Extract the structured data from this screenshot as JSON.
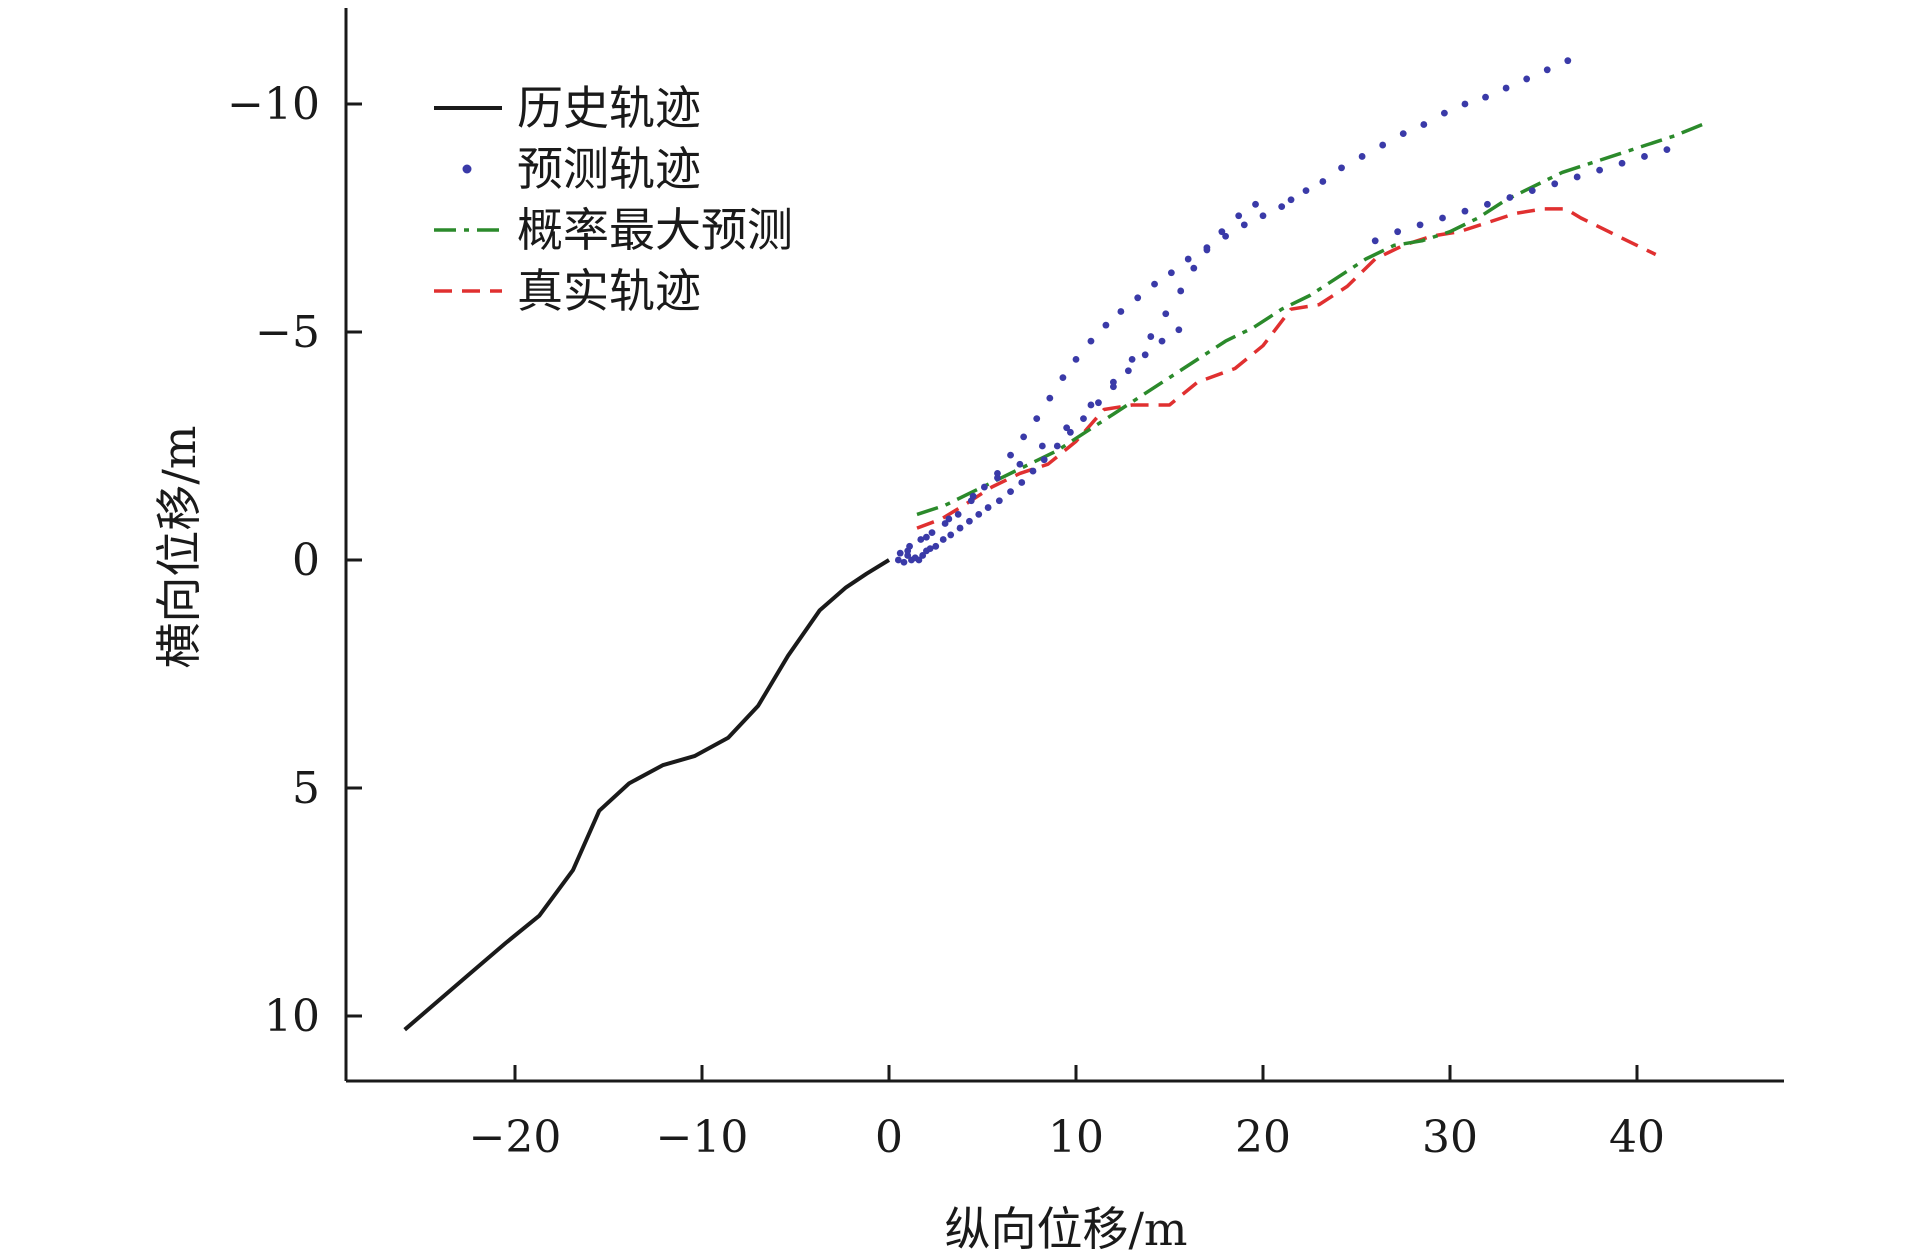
{
  "chart_data": {
    "type": "line",
    "xlabel": "纵向位移/m",
    "ylabel": "横向位移/m",
    "xlim": [
      -29,
      48
    ],
    "ylim": [
      11.5,
      -12
    ],
    "y_inverted": true,
    "x_ticks": [
      -20,
      -10,
      0,
      10,
      20,
      30,
      40
    ],
    "x_tick_labels": [
      "−20",
      "−10",
      "0",
      "10",
      "20",
      "30",
      "40"
    ],
    "y_ticks": [
      -10,
      -5,
      0,
      5,
      10
    ],
    "y_tick_labels": [
      "−10",
      "−5",
      "0",
      "5",
      "10"
    ],
    "grid": false,
    "legend_position": "top-left",
    "series": [
      {
        "name": "历史轨迹",
        "style": "solid",
        "color": "#1a1a1a",
        "points": [
          [
            -25.9,
            10.3
          ],
          [
            -22.5,
            9.1
          ],
          [
            -20.5,
            8.4
          ],
          [
            -18.7,
            7.8
          ],
          [
            -16.9,
            6.8
          ],
          [
            -15.5,
            5.5
          ],
          [
            -13.9,
            4.9
          ],
          [
            -12.1,
            4.5
          ],
          [
            -10.4,
            4.3
          ],
          [
            -8.6,
            3.9
          ],
          [
            -7.0,
            3.2
          ],
          [
            -5.4,
            2.1
          ],
          [
            -3.7,
            1.1
          ],
          [
            -2.3,
            0.6
          ],
          [
            -1.2,
            0.3
          ],
          [
            0,
            0
          ]
        ]
      },
      {
        "name": "预测轨迹",
        "style": "dotted",
        "color": "#3a3aa8",
        "points": [
          [
            0.5,
            0.0
          ],
          [
            0.8,
            0.05
          ],
          [
            1.0,
            -0.1
          ],
          [
            1.2,
            0.0
          ],
          [
            1.4,
            -0.05
          ],
          [
            1.6,
            0.0
          ],
          [
            1.8,
            -0.1
          ],
          [
            2.0,
            -0.2
          ],
          [
            2.2,
            -0.25
          ],
          [
            2.5,
            -0.3
          ],
          [
            2.9,
            -0.45
          ],
          [
            3.3,
            -0.55
          ],
          [
            3.8,
            -0.7
          ],
          [
            4.3,
            -0.85
          ],
          [
            4.8,
            -1.0
          ],
          [
            5.3,
            -1.15
          ],
          [
            5.9,
            -1.3
          ],
          [
            6.5,
            -1.5
          ],
          [
            7.1,
            -1.7
          ],
          [
            7.7,
            -1.95
          ],
          [
            8.3,
            -2.2
          ],
          [
            9.0,
            -2.5
          ],
          [
            9.7,
            -2.8
          ],
          [
            10.4,
            -3.1
          ],
          [
            11.2,
            -3.45
          ],
          [
            12.0,
            -3.8
          ],
          [
            12.8,
            -4.15
          ],
          [
            13.7,
            -4.5
          ],
          [
            14.6,
            -4.8
          ],
          [
            15.5,
            -5.05
          ],
          [
            0.6,
            -0.15
          ],
          [
            1.1,
            -0.3
          ],
          [
            1.7,
            -0.45
          ],
          [
            2.3,
            -0.6
          ],
          [
            3.0,
            -0.8
          ],
          [
            3.7,
            -1.0
          ],
          [
            4.4,
            -1.3
          ],
          [
            5.1,
            -1.6
          ],
          [
            5.8,
            -1.9
          ],
          [
            6.5,
            -2.3
          ],
          [
            7.2,
            -2.7
          ],
          [
            7.9,
            -3.1
          ],
          [
            8.6,
            -3.55
          ],
          [
            9.3,
            -4.0
          ],
          [
            10.0,
            -4.4
          ],
          [
            10.8,
            -4.8
          ],
          [
            11.6,
            -5.15
          ],
          [
            12.4,
            -5.45
          ],
          [
            13.3,
            -5.75
          ],
          [
            14.2,
            -6.05
          ],
          [
            15.1,
            -6.3
          ],
          [
            16.0,
            -6.6
          ],
          [
            17.0,
            -6.85
          ],
          [
            18.0,
            -7.1
          ],
          [
            19.0,
            -7.35
          ],
          [
            20.0,
            -7.55
          ],
          [
            21.0,
            -7.75
          ],
          [
            1.0,
            -0.2
          ],
          [
            2.0,
            -0.5
          ],
          [
            3.2,
            -0.9
          ],
          [
            4.5,
            -1.4
          ],
          [
            5.8,
            -1.8
          ],
          [
            7.0,
            -2.1
          ],
          [
            8.2,
            -2.5
          ],
          [
            9.5,
            -2.9
          ],
          [
            10.8,
            -3.4
          ],
          [
            12.0,
            -3.9
          ],
          [
            13.0,
            -4.4
          ],
          [
            14.0,
            -4.9
          ],
          [
            14.8,
            -5.4
          ],
          [
            15.6,
            -5.9
          ],
          [
            16.3,
            -6.4
          ],
          [
            17.0,
            -6.8
          ],
          [
            17.8,
            -7.2
          ],
          [
            18.7,
            -7.55
          ],
          [
            19.6,
            -7.8
          ],
          [
            21.5,
            -7.9
          ],
          [
            22.3,
            -8.1
          ],
          [
            23.2,
            -8.3
          ],
          [
            24.2,
            -8.6
          ],
          [
            25.3,
            -8.85
          ],
          [
            26.4,
            -9.1
          ],
          [
            27.5,
            -9.35
          ],
          [
            28.6,
            -9.55
          ],
          [
            29.7,
            -9.8
          ],
          [
            30.8,
            -10.0
          ],
          [
            31.9,
            -10.15
          ],
          [
            33.0,
            -10.35
          ],
          [
            34.1,
            -10.55
          ],
          [
            35.2,
            -10.75
          ],
          [
            36.3,
            -10.95
          ],
          [
            26.0,
            -7.0
          ],
          [
            27.2,
            -7.2
          ],
          [
            28.4,
            -7.35
          ],
          [
            29.6,
            -7.5
          ],
          [
            30.8,
            -7.65
          ],
          [
            32.0,
            -7.8
          ],
          [
            33.2,
            -7.95
          ],
          [
            34.4,
            -8.1
          ],
          [
            35.6,
            -8.25
          ],
          [
            36.8,
            -8.4
          ],
          [
            38.0,
            -8.55
          ],
          [
            39.2,
            -8.7
          ],
          [
            40.4,
            -8.85
          ],
          [
            41.6,
            -9.0
          ]
        ]
      },
      {
        "name": "概率最大预测",
        "style": "dashdot",
        "color": "#2b8a2b",
        "points": [
          [
            1.5,
            -1.0
          ],
          [
            3.0,
            -1.2
          ],
          [
            4.5,
            -1.5
          ],
          [
            6.0,
            -1.8
          ],
          [
            7.5,
            -2.1
          ],
          [
            9.0,
            -2.4
          ],
          [
            10.5,
            -2.8
          ],
          [
            12.0,
            -3.2
          ],
          [
            13.5,
            -3.6
          ],
          [
            15.0,
            -4.0
          ],
          [
            16.5,
            -4.4
          ],
          [
            18.0,
            -4.8
          ],
          [
            19.5,
            -5.1
          ],
          [
            21.0,
            -5.5
          ],
          [
            22.5,
            -5.8
          ],
          [
            24.0,
            -6.2
          ],
          [
            25.5,
            -6.6
          ],
          [
            27.0,
            -6.9
          ],
          [
            28.5,
            -7.0
          ],
          [
            30.0,
            -7.2
          ],
          [
            31.5,
            -7.5
          ],
          [
            33.0,
            -7.9
          ],
          [
            34.5,
            -8.2
          ],
          [
            36.0,
            -8.5
          ],
          [
            37.5,
            -8.7
          ],
          [
            39.0,
            -8.9
          ],
          [
            40.5,
            -9.1
          ],
          [
            42.0,
            -9.3
          ],
          [
            43.8,
            -9.6
          ]
        ]
      },
      {
        "name": "真实轨迹",
        "style": "dashed",
        "color": "#e03030",
        "points": [
          [
            1.5,
            -0.7
          ],
          [
            2.8,
            -0.9
          ],
          [
            4.0,
            -1.2
          ],
          [
            5.5,
            -1.6
          ],
          [
            7.0,
            -1.9
          ],
          [
            8.5,
            -2.1
          ],
          [
            10.0,
            -2.6
          ],
          [
            11.5,
            -3.3
          ],
          [
            13.0,
            -3.4
          ],
          [
            15.0,
            -3.4
          ],
          [
            16.5,
            -3.9
          ],
          [
            18.5,
            -4.2
          ],
          [
            20.0,
            -4.7
          ],
          [
            21.5,
            -5.5
          ],
          [
            23.0,
            -5.6
          ],
          [
            24.5,
            -6.0
          ],
          [
            26.0,
            -6.6
          ],
          [
            27.5,
            -6.9
          ],
          [
            29.0,
            -7.1
          ],
          [
            30.5,
            -7.2
          ],
          [
            32.0,
            -7.4
          ],
          [
            33.5,
            -7.6
          ],
          [
            35.0,
            -7.7
          ],
          [
            36.2,
            -7.7
          ],
          [
            37.0,
            -7.5
          ],
          [
            38.5,
            -7.2
          ],
          [
            40.0,
            -6.9
          ],
          [
            41.0,
            -6.7
          ]
        ]
      }
    ]
  }
}
